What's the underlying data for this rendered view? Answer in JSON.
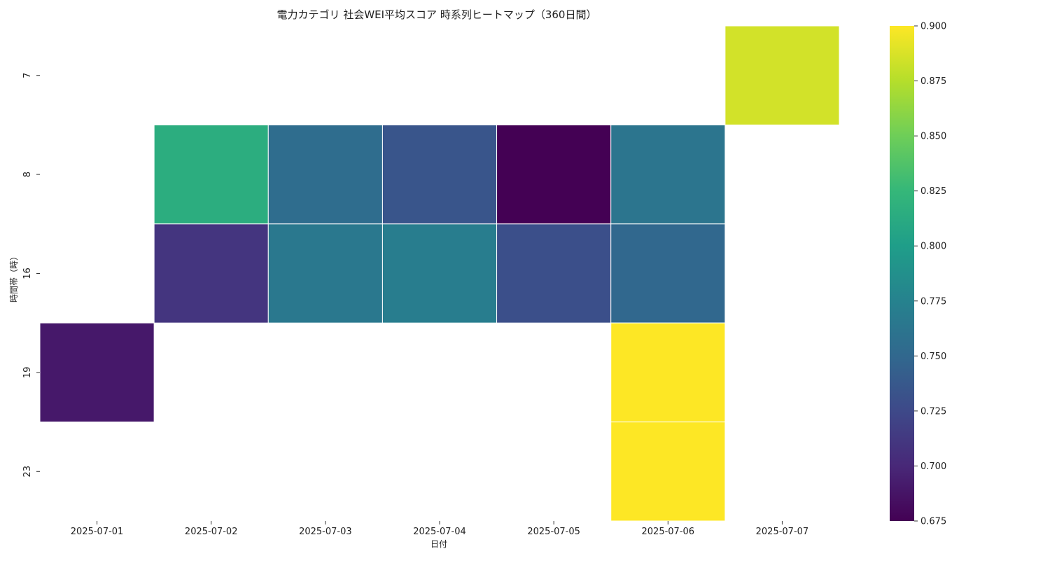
{
  "chart_data": {
    "type": "heatmap",
    "title": "電力カテゴリ 社会WEI平均スコア 時系列ヒートマップ（360日間）",
    "xlabel": "日付",
    "ylabel": "時間帯（時）",
    "x_categories": [
      "2025-07-01",
      "2025-07-02",
      "2025-07-03",
      "2025-07-04",
      "2025-07-05",
      "2025-07-06",
      "2025-07-07"
    ],
    "y_categories": [
      "7",
      "8",
      "16",
      "19",
      "23"
    ],
    "values": [
      [
        null,
        null,
        null,
        null,
        null,
        null,
        0.885
      ],
      [
        null,
        0.815,
        0.755,
        0.735,
        0.675,
        0.762,
        null
      ],
      [
        null,
        0.71,
        0.765,
        0.77,
        0.73,
        0.75,
        null
      ],
      [
        0.69,
        null,
        null,
        null,
        null,
        0.9,
        null
      ],
      [
        null,
        null,
        null,
        null,
        null,
        0.9,
        null
      ]
    ],
    "colorscale": "viridis",
    "vmin": 0.675,
    "vmax": 0.9,
    "colorbar_ticks": [
      "0.675",
      "0.700",
      "0.725",
      "0.750",
      "0.775",
      "0.800",
      "0.825",
      "0.850",
      "0.875",
      "0.900"
    ]
  }
}
